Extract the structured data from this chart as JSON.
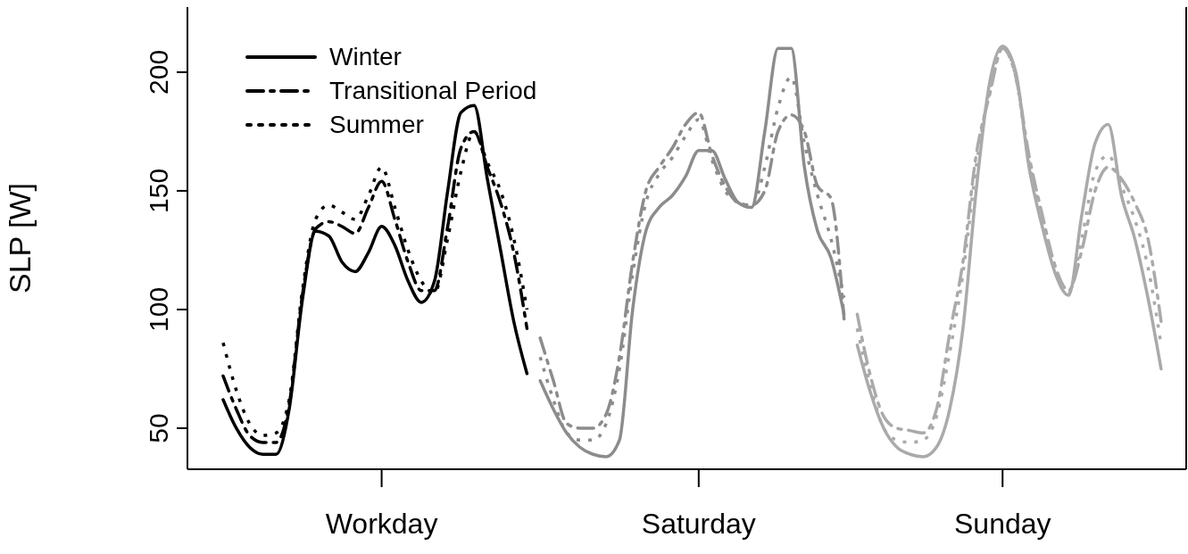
{
  "chart_data": {
    "type": "line",
    "ylabel": "SLP [W]",
    "categories": [
      null,
      null,
      null,
      null,
      null,
      null,
      null,
      null,
      null,
      null,
      null,
      null,
      "Workday",
      null,
      null,
      null,
      null,
      null,
      null,
      null,
      null,
      null,
      null,
      null,
      null,
      null,
      null,
      null,
      null,
      null,
      null,
      null,
      null,
      null,
      null,
      null,
      "Saturday",
      null,
      null,
      null,
      null,
      null,
      null,
      null,
      null,
      null,
      null,
      null,
      null,
      null,
      null,
      null,
      null,
      null,
      null,
      null,
      null,
      null,
      null,
      "Sunday",
      null,
      null,
      null,
      null,
      null,
      null,
      null,
      null,
      null,
      null,
      null,
      null
    ],
    "ylim": [
      32.7,
      227.4
    ],
    "yticks": [
      50,
      100,
      150,
      200
    ],
    "legend": "top left",
    "series": [
      {
        "name": "Winter",
        "color": "#000000",
        "line_style": "solid",
        "values": [
          62,
          50,
          42,
          39,
          39,
          58,
          104,
          133,
          131,
          120,
          116,
          124,
          135,
          127,
          112,
          103,
          112,
          150,
          183,
          186,
          155,
          125,
          95,
          73,
          null,
          null,
          null,
          null,
          null,
          null,
          null,
          null,
          null,
          null,
          null,
          null,
          null,
          null,
          null,
          null,
          null,
          null,
          null,
          null,
          null,
          null,
          null,
          null,
          null,
          null,
          null,
          null,
          null,
          null,
          null,
          null,
          null,
          null,
          null,
          null,
          null,
          null,
          null,
          null,
          null,
          null,
          null,
          null,
          null,
          null,
          null,
          null
        ]
      },
      {
        "name": "Transitional Period",
        "color": "#000000",
        "line_style": "dashed",
        "values": [
          72,
          58,
          47,
          44,
          44,
          60,
          106,
          134,
          137,
          135,
          132,
          143,
          154,
          138,
          120,
          108,
          108,
          135,
          168,
          175,
          160,
          145,
          124,
          92,
          null,
          null,
          null,
          null,
          null,
          null,
          null,
          null,
          null,
          null,
          null,
          null,
          null,
          null,
          null,
          null,
          null,
          null,
          null,
          null,
          null,
          null,
          null,
          null,
          null,
          null,
          null,
          null,
          null,
          null,
          null,
          null,
          null,
          null,
          null,
          null,
          null,
          null,
          null,
          null,
          null,
          null,
          null,
          null,
          null,
          null,
          null,
          null
        ]
      },
      {
        "name": "Summer",
        "color": "#000000",
        "line_style": "dotted",
        "values": [
          86,
          66,
          52,
          47,
          48,
          62,
          108,
          138,
          144,
          141,
          138,
          148,
          160,
          143,
          125,
          112,
          107,
          130,
          158,
          175,
          162,
          150,
          130,
          100,
          null,
          null,
          null,
          null,
          null,
          null,
          null,
          null,
          null,
          null,
          null,
          null,
          null,
          null,
          null,
          null,
          null,
          null,
          null,
          null,
          null,
          null,
          null,
          null,
          null,
          null,
          null,
          null,
          null,
          null,
          null,
          null,
          null,
          null,
          null,
          null,
          null,
          null,
          null,
          null,
          null,
          null,
          null,
          null,
          null,
          null,
          null,
          null
        ]
      },
      {
        "color": "#8c8c8c",
        "line_style": "solid",
        "values": [
          null,
          null,
          null,
          null,
          null,
          null,
          null,
          null,
          null,
          null,
          null,
          null,
          null,
          null,
          null,
          null,
          null,
          null,
          null,
          null,
          null,
          null,
          null,
          null,
          70,
          58,
          48,
          42,
          39,
          38,
          45,
          100,
          133,
          143,
          148,
          156,
          167,
          167,
          155,
          145,
          143,
          175,
          210,
          210,
          160,
          133,
          122,
          98,
          null,
          null,
          null,
          null,
          null,
          null,
          null,
          null,
          null,
          null,
          null,
          null,
          null,
          null,
          null,
          null,
          null,
          null,
          null,
          null,
          null,
          null,
          null,
          null
        ]
      },
      {
        "color": "#8c8c8c",
        "line_style": "dashed",
        "values": [
          null,
          null,
          null,
          null,
          null,
          null,
          null,
          null,
          null,
          null,
          null,
          null,
          null,
          null,
          null,
          null,
          null,
          null,
          null,
          null,
          null,
          null,
          null,
          null,
          88,
          70,
          52,
          50,
          50,
          56,
          80,
          120,
          150,
          160,
          168,
          178,
          183,
          165,
          152,
          145,
          144,
          150,
          175,
          182,
          175,
          152,
          147,
          96,
          null,
          null,
          null,
          null,
          null,
          null,
          null,
          null,
          null,
          null,
          null,
          null,
          null,
          null,
          null,
          null,
          null,
          null,
          null,
          null,
          null,
          null,
          null,
          null
        ]
      },
      {
        "color": "#8c8c8c",
        "line_style": "dotted",
        "values": [
          null,
          null,
          null,
          null,
          null,
          null,
          null,
          null,
          null,
          null,
          null,
          null,
          null,
          null,
          null,
          null,
          null,
          null,
          null,
          null,
          null,
          null,
          null,
          null,
          80,
          62,
          48,
          45,
          45,
          52,
          75,
          115,
          145,
          157,
          164,
          173,
          180,
          163,
          150,
          145,
          143,
          160,
          185,
          198,
          170,
          148,
          130,
          105,
          null,
          null,
          null,
          null,
          null,
          null,
          null,
          null,
          null,
          null,
          null,
          null,
          null,
          null,
          null,
          null,
          null,
          null,
          null,
          null,
          null,
          null,
          null,
          null
        ]
      },
      {
        "color": "#aaaaaa",
        "line_style": "solid",
        "values": [
          null,
          null,
          null,
          null,
          null,
          null,
          null,
          null,
          null,
          null,
          null,
          null,
          null,
          null,
          null,
          null,
          null,
          null,
          null,
          null,
          null,
          null,
          null,
          null,
          null,
          null,
          null,
          null,
          null,
          null,
          null,
          null,
          null,
          null,
          null,
          null,
          null,
          null,
          null,
          null,
          null,
          null,
          null,
          null,
          null,
          null,
          null,
          null,
          85,
          65,
          50,
          42,
          39,
          38,
          42,
          58,
          92,
          150,
          195,
          211,
          200,
          160,
          135,
          115,
          106,
          140,
          170,
          178,
          148,
          130,
          105,
          75
        ]
      },
      {
        "color": "#aaaaaa",
        "line_style": "dashed",
        "values": [
          null,
          null,
          null,
          null,
          null,
          null,
          null,
          null,
          null,
          null,
          null,
          null,
          null,
          null,
          null,
          null,
          null,
          null,
          null,
          null,
          null,
          null,
          null,
          null,
          null,
          null,
          null,
          null,
          null,
          null,
          null,
          null,
          null,
          null,
          null,
          null,
          null,
          null,
          null,
          null,
          null,
          null,
          null,
          null,
          null,
          null,
          null,
          null,
          98,
          72,
          55,
          50,
          49,
          48,
          58,
          90,
          120,
          165,
          190,
          210,
          198,
          165,
          140,
          118,
          108,
          125,
          150,
          160,
          155,
          145,
          130,
          95
        ]
      },
      {
        "color": "#aaaaaa",
        "line_style": "dotted",
        "values": [
          null,
          null,
          null,
          null,
          null,
          null,
          null,
          null,
          null,
          null,
          null,
          null,
          null,
          null,
          null,
          null,
          null,
          null,
          null,
          null,
          null,
          null,
          null,
          null,
          null,
          null,
          null,
          null,
          null,
          null,
          null,
          null,
          null,
          null,
          null,
          null,
          null,
          null,
          null,
          null,
          null,
          null,
          null,
          null,
          null,
          null,
          null,
          null,
          92,
          68,
          50,
          45,
          44,
          45,
          55,
          82,
          115,
          160,
          192,
          211,
          198,
          162,
          138,
          117,
          107,
          130,
          158,
          165,
          152,
          138,
          118,
          85
        ]
      }
    ]
  }
}
